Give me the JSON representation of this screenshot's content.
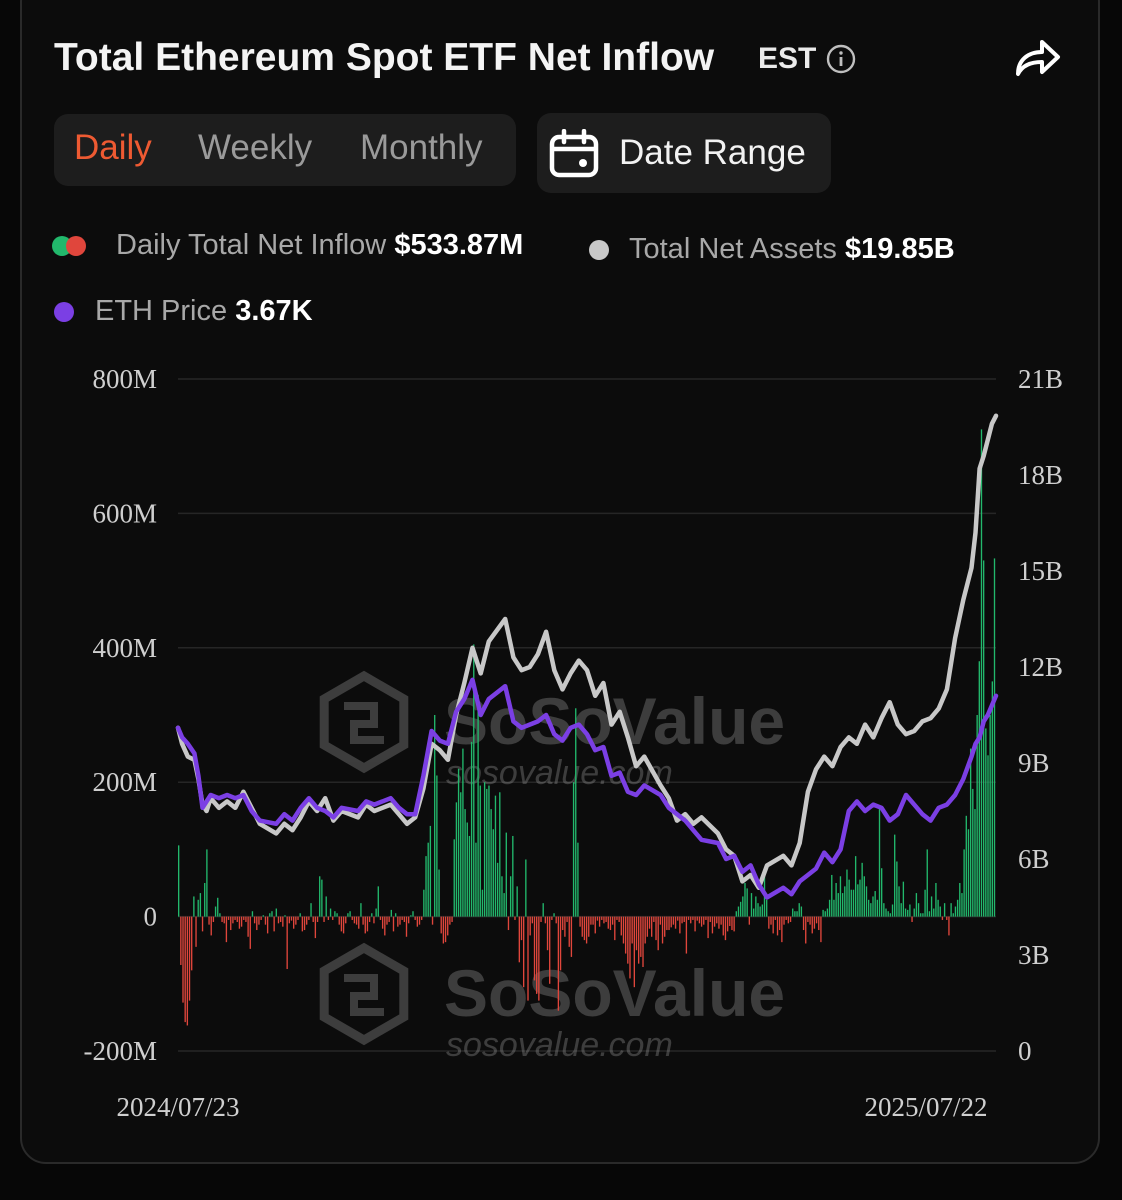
{
  "header": {
    "title": "Total Ethereum Spot ETF Net Inflow",
    "timezone": "EST"
  },
  "tabs": [
    {
      "label": "Daily",
      "active": true
    },
    {
      "label": "Weekly",
      "active": false
    },
    {
      "label": "Monthly",
      "active": false
    }
  ],
  "date_range_label": "Date Range",
  "legend": {
    "inflow": {
      "label": "Daily Total Net Inflow",
      "value": "$533.87M"
    },
    "assets": {
      "label": "Total Net Assets",
      "value": "$19.85B"
    },
    "price": {
      "label": "ETH Price",
      "value": "3.67K"
    }
  },
  "watermark": {
    "brand": "SoSoValue",
    "url": "sosovalue.com"
  },
  "icons": [
    "info-icon",
    "share-icon",
    "calendar-icon"
  ],
  "colors": {
    "accent": "#ee5a32",
    "inflow_positive": "#22b86c",
    "inflow_negative": "#e0463c",
    "total_net_assets": "#c8c8c8",
    "eth_price": "#7b3fe4"
  },
  "chart_data": {
    "type": "bar",
    "x_start": "2024/07/23",
    "x_end": "2025/07/22",
    "x_tick_labels": [
      "2024/07/23",
      "2025/07/22"
    ],
    "left_axis": {
      "ticks": [
        "800M",
        "600M",
        "400M",
        "200M",
        "0",
        "-200M"
      ],
      "min": -200,
      "max": 800,
      "unit": "M"
    },
    "right_axis": {
      "ticks": [
        "21B",
        "18B",
        "15B",
        "12B",
        "9B",
        "6B",
        "3B",
        "0"
      ],
      "min": 0,
      "max": 21,
      "unit": "B"
    },
    "series": [
      {
        "name": "Daily Total Net Inflow",
        "type": "bar",
        "axis": "left",
        "values": [
          106,
          -72,
          -128,
          -157,
          -162,
          -125,
          -80,
          30,
          -45,
          25,
          35,
          -22,
          50,
          100,
          -12,
          -28,
          -8,
          15,
          28,
          5,
          -8,
          -10,
          -38,
          -5,
          -20,
          -10,
          -5,
          -8,
          -18,
          -15,
          -5,
          -8,
          -30,
          -48,
          8,
          -10,
          -20,
          -12,
          -5,
          2,
          -12,
          -25,
          5,
          8,
          -22,
          12,
          -10,
          -8,
          -15,
          2,
          -78,
          -10,
          -6,
          -18,
          -12,
          -5,
          5,
          -22,
          -20,
          -12,
          -5,
          20,
          -8,
          -32,
          -8,
          60,
          55,
          -8,
          30,
          -5,
          12,
          -5,
          8,
          5,
          -12,
          -22,
          -25,
          -10,
          5,
          8,
          -5,
          -10,
          -12,
          -18,
          20,
          -12,
          -25,
          -22,
          -8,
          5,
          -10,
          12,
          45,
          -5,
          -18,
          -28,
          -12,
          -8,
          10,
          -22,
          5,
          -15,
          -12,
          -5,
          -8,
          -30,
          -10,
          2,
          8,
          -5,
          -15,
          -12,
          -5,
          40,
          90,
          110,
          135,
          -12,
          300,
          210,
          70,
          -25,
          -40,
          -38,
          -28,
          -12,
          -8,
          115,
          170,
          220,
          185,
          250,
          160,
          140,
          120,
          260,
          405,
          110,
          330,
          195,
          40,
          200,
          190,
          195,
          160,
          130,
          180,
          80,
          185,
          60,
          35,
          125,
          -20,
          60,
          120,
          -5,
          45,
          -68,
          -35,
          -105,
          85,
          -125,
          -28,
          -10,
          -95,
          -115,
          -125,
          -8,
          20,
          -10,
          -50,
          -100,
          -5,
          5,
          -10,
          -140,
          -80,
          -20,
          -30,
          -8,
          -45,
          -60,
          200,
          310,
          110,
          -15,
          -30,
          -35,
          -40,
          -30,
          -12,
          -12,
          -25,
          -6,
          -15,
          -5,
          -10,
          -8,
          -18,
          -20,
          -12,
          -35,
          -5,
          -8,
          -28,
          -40,
          -55,
          -70,
          -92,
          -40,
          -105,
          -50,
          -70,
          -60,
          -75,
          -40,
          -30,
          -18,
          -30,
          -8,
          -35,
          -50,
          -12,
          -40,
          -30,
          -20,
          -20,
          -16,
          -12,
          -18,
          -6,
          -25,
          -10,
          -8,
          -55,
          -5,
          -10,
          -5,
          -22,
          -6,
          -10,
          -15,
          -12,
          -5,
          -32,
          -8,
          -25,
          -15,
          -10,
          -18,
          -12,
          -28,
          -35,
          -22,
          -14,
          -20,
          -22,
          8,
          15,
          22,
          30,
          50,
          42,
          -12,
          35,
          12,
          30,
          20,
          15,
          18,
          60,
          25,
          -18,
          -12,
          -25,
          -5,
          -28,
          -20,
          -38,
          -12,
          -5,
          -10,
          -8,
          12,
          8,
          8,
          20,
          15,
          -20,
          -40,
          -8,
          -12,
          -25,
          -18,
          -10,
          -20,
          -38,
          10,
          8,
          12,
          25,
          62,
          25,
          50,
          35,
          60,
          35,
          45,
          70,
          55,
          40,
          40,
          90,
          48,
          55,
          80,
          60,
          45,
          25,
          20,
          30,
          38,
          25,
          162,
          72,
          20,
          12,
          8,
          5,
          18,
          122,
          82,
          45,
          20,
          52,
          12,
          10,
          18,
          -8,
          12,
          35,
          20,
          5,
          5,
          40,
          100,
          8,
          30,
          12,
          50,
          25,
          15,
          -5,
          20,
          -5,
          -28,
          20,
          5,
          15,
          25,
          50,
          35,
          100,
          150,
          130,
          250,
          190,
          160,
          300,
          380,
          725,
          530,
          280,
          240,
          300,
          350,
          533
        ]
      },
      {
        "name": "Total Net Assets",
        "type": "line",
        "axis": "right",
        "points": [
          [
            0,
            10.1
          ],
          [
            0.005,
            9.6
          ],
          [
            0.012,
            9.2
          ],
          [
            0.02,
            9.1
          ],
          [
            0.025,
            8.5
          ],
          [
            0.03,
            7.7
          ],
          [
            0.035,
            7.5
          ],
          [
            0.04,
            7.9
          ],
          [
            0.05,
            7.6
          ],
          [
            0.06,
            7.8
          ],
          [
            0.07,
            7.6
          ],
          [
            0.08,
            8.1
          ],
          [
            0.09,
            7.6
          ],
          [
            0.1,
            7.1
          ],
          [
            0.12,
            6.8
          ],
          [
            0.13,
            7.1
          ],
          [
            0.14,
            6.9
          ],
          [
            0.15,
            7.3
          ],
          [
            0.16,
            7.8
          ],
          [
            0.17,
            7.5
          ],
          [
            0.18,
            7.9
          ],
          [
            0.19,
            7.2
          ],
          [
            0.2,
            7.5
          ],
          [
            0.22,
            7.3
          ],
          [
            0.23,
            7.7
          ],
          [
            0.24,
            7.5
          ],
          [
            0.26,
            7.7
          ],
          [
            0.27,
            7.4
          ],
          [
            0.28,
            7.1
          ],
          [
            0.29,
            7.3
          ],
          [
            0.3,
            8.2
          ],
          [
            0.31,
            9.6
          ],
          [
            0.32,
            9.4
          ],
          [
            0.33,
            9.1
          ],
          [
            0.34,
            10.5
          ],
          [
            0.35,
            11.5
          ],
          [
            0.36,
            12.6
          ],
          [
            0.37,
            11.8
          ],
          [
            0.38,
            12.8
          ],
          [
            0.4,
            13.5
          ],
          [
            0.41,
            12.3
          ],
          [
            0.42,
            11.9
          ],
          [
            0.43,
            12
          ],
          [
            0.44,
            12.4
          ],
          [
            0.45,
            13.1
          ],
          [
            0.46,
            11.9
          ],
          [
            0.47,
            11.3
          ],
          [
            0.48,
            11.8
          ],
          [
            0.49,
            12.2
          ],
          [
            0.5,
            11.9
          ],
          [
            0.51,
            11.1
          ],
          [
            0.52,
            11.5
          ],
          [
            0.53,
            10.2
          ],
          [
            0.54,
            10.6
          ],
          [
            0.55,
            9.8
          ],
          [
            0.56,
            8.9
          ],
          [
            0.57,
            9.2
          ],
          [
            0.59,
            8.3
          ],
          [
            0.6,
            7.9
          ],
          [
            0.61,
            7.2
          ],
          [
            0.62,
            7.4
          ],
          [
            0.63,
            7.1
          ],
          [
            0.64,
            7.3
          ],
          [
            0.66,
            6.8
          ],
          [
            0.67,
            6.3
          ],
          [
            0.68,
            6.1
          ],
          [
            0.69,
            5.3
          ],
          [
            0.7,
            5.5
          ],
          [
            0.71,
            5.1
          ],
          [
            0.72,
            5.8
          ],
          [
            0.74,
            6.1
          ],
          [
            0.75,
            5.8
          ],
          [
            0.76,
            6.5
          ],
          [
            0.77,
            8.1
          ],
          [
            0.78,
            8.8
          ],
          [
            0.79,
            9.2
          ],
          [
            0.8,
            8.9
          ],
          [
            0.81,
            9.5
          ],
          [
            0.82,
            9.8
          ],
          [
            0.83,
            9.6
          ],
          [
            0.84,
            10.2
          ],
          [
            0.85,
            9.8
          ],
          [
            0.86,
            10.4
          ],
          [
            0.87,
            10.9
          ],
          [
            0.88,
            10.2
          ],
          [
            0.89,
            9.9
          ],
          [
            0.9,
            10
          ],
          [
            0.91,
            10.3
          ],
          [
            0.92,
            10.4
          ],
          [
            0.93,
            10.7
          ],
          [
            0.94,
            11.3
          ],
          [
            0.95,
            12.9
          ],
          [
            0.96,
            14.1
          ],
          [
            0.97,
            15.1
          ],
          [
            0.975,
            16.2
          ],
          [
            0.98,
            18.2
          ],
          [
            0.985,
            18.6
          ],
          [
            0.99,
            19.1
          ],
          [
            0.995,
            19.6
          ],
          [
            1,
            19.85
          ]
        ]
      },
      {
        "name": "ETH Price",
        "type": "line",
        "axis": "right",
        "points": [
          [
            0,
            10.1
          ],
          [
            0.005,
            9.8
          ],
          [
            0.012,
            9.6
          ],
          [
            0.02,
            9.3
          ],
          [
            0.025,
            8.6
          ],
          [
            0.03,
            7.6
          ],
          [
            0.035,
            7.8
          ],
          [
            0.04,
            8
          ],
          [
            0.05,
            7.9
          ],
          [
            0.06,
            8
          ],
          [
            0.07,
            7.9
          ],
          [
            0.08,
            8
          ],
          [
            0.09,
            7.5
          ],
          [
            0.1,
            7.2
          ],
          [
            0.12,
            7.1
          ],
          [
            0.13,
            7.4
          ],
          [
            0.14,
            7.2
          ],
          [
            0.15,
            7.6
          ],
          [
            0.16,
            7.9
          ],
          [
            0.17,
            7.6
          ],
          [
            0.18,
            7.5
          ],
          [
            0.19,
            7.3
          ],
          [
            0.2,
            7.6
          ],
          [
            0.22,
            7.5
          ],
          [
            0.23,
            7.8
          ],
          [
            0.24,
            7.7
          ],
          [
            0.26,
            7.9
          ],
          [
            0.27,
            7.6
          ],
          [
            0.28,
            7.4
          ],
          [
            0.29,
            7.4
          ],
          [
            0.3,
            8.6
          ],
          [
            0.31,
            10
          ],
          [
            0.32,
            9.7
          ],
          [
            0.33,
            9.6
          ],
          [
            0.34,
            10.6
          ],
          [
            0.35,
            11
          ],
          [
            0.36,
            11.6
          ],
          [
            0.37,
            10.5
          ],
          [
            0.38,
            11
          ],
          [
            0.4,
            11.4
          ],
          [
            0.41,
            10.3
          ],
          [
            0.42,
            10.1
          ],
          [
            0.43,
            10.2
          ],
          [
            0.44,
            10.3
          ],
          [
            0.45,
            10.5
          ],
          [
            0.46,
            9.9
          ],
          [
            0.47,
            9.7
          ],
          [
            0.48,
            10.1
          ],
          [
            0.49,
            10.2
          ],
          [
            0.5,
            9.9
          ],
          [
            0.51,
            9.4
          ],
          [
            0.52,
            9.5
          ],
          [
            0.53,
            8.6
          ],
          [
            0.54,
            8.7
          ],
          [
            0.55,
            8.1
          ],
          [
            0.56,
            8
          ],
          [
            0.57,
            8.3
          ],
          [
            0.59,
            8
          ],
          [
            0.6,
            7.6
          ],
          [
            0.61,
            7.4
          ],
          [
            0.62,
            7.2
          ],
          [
            0.63,
            6.9
          ],
          [
            0.64,
            6.6
          ],
          [
            0.66,
            6.5
          ],
          [
            0.67,
            6
          ],
          [
            0.68,
            6.1
          ],
          [
            0.69,
            5.6
          ],
          [
            0.7,
            5.8
          ],
          [
            0.71,
            5.2
          ],
          [
            0.72,
            4.8
          ],
          [
            0.74,
            5.1
          ],
          [
            0.75,
            4.9
          ],
          [
            0.76,
            5.3
          ],
          [
            0.77,
            5.5
          ],
          [
            0.78,
            5.7
          ],
          [
            0.79,
            6.2
          ],
          [
            0.8,
            5.9
          ],
          [
            0.81,
            6.3
          ],
          [
            0.82,
            7.5
          ],
          [
            0.83,
            7.8
          ],
          [
            0.84,
            7.5
          ],
          [
            0.85,
            7.7
          ],
          [
            0.86,
            7.6
          ],
          [
            0.87,
            7.2
          ],
          [
            0.88,
            7.4
          ],
          [
            0.89,
            8
          ],
          [
            0.9,
            7.7
          ],
          [
            0.91,
            7.4
          ],
          [
            0.92,
            7.2
          ],
          [
            0.93,
            7.6
          ],
          [
            0.94,
            7.7
          ],
          [
            0.95,
            8
          ],
          [
            0.96,
            8.5
          ],
          [
            0.97,
            9.2
          ],
          [
            0.975,
            9.6
          ],
          [
            0.98,
            9.8
          ],
          [
            0.985,
            10.3
          ],
          [
            0.99,
            10.5
          ],
          [
            0.995,
            10.8
          ],
          [
            1,
            11.1
          ]
        ]
      }
    ]
  }
}
